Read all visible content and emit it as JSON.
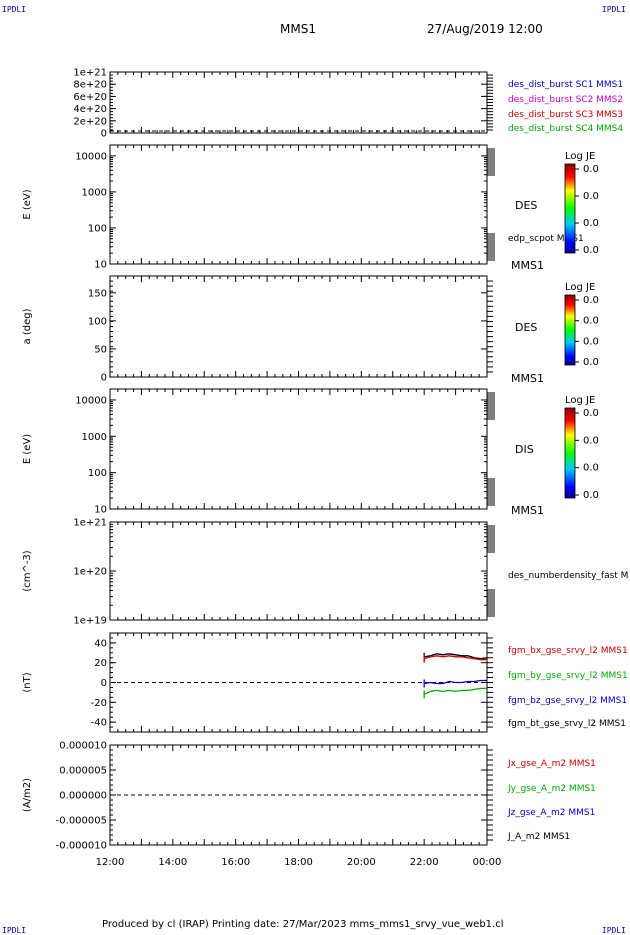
{
  "corner_labels": {
    "top_left": "IPDLI",
    "top_right": "IPDLI",
    "bottom_left": "IPDLI",
    "bottom_right": "IPDLI"
  },
  "header": {
    "title": "MMS1",
    "datetime": "27/Aug/2019 12:00"
  },
  "footer": {
    "text": "Produced by cl (IRAP)   Printing date: 27/Mar/2023   mms_mms1_srvy_vue_web1.cl"
  },
  "colors": {
    "black": "#000000",
    "blue": "#0000ff",
    "red": "#dd0000",
    "green": "#00cc00",
    "magenta": "#dd00dd"
  },
  "chart_data": [
    {
      "type": "line",
      "panel": "burst",
      "yticks": [
        "1e+21",
        "8e+20",
        "6e+20",
        "4e+20",
        "2e+20",
        "0"
      ],
      "ylim": [
        0,
        1e+21
      ],
      "legend": [
        {
          "name": "des_dist_burst SC1 MMS1",
          "color": "#0000cc"
        },
        {
          "name": "des_dist_burst SC2 MMS2",
          "color": "#cc00cc"
        },
        {
          "name": "des_dist_burst SC3 MMS3",
          "color": "#cc0000"
        },
        {
          "name": "des_dist_burst SC4 MMS4",
          "color": "#00aa00"
        }
      ],
      "series": []
    },
    {
      "type": "heatmap",
      "panel": "des_energy",
      "ylabel": "E (eV)",
      "scale": "log",
      "yticks": [
        "10000",
        "1000",
        "100",
        "10"
      ],
      "ylim": [
        10,
        20000
      ],
      "label": "DES",
      "bottom_label": "MMS1",
      "overlay_label": "edp_scpot MMS1",
      "colorbar": {
        "title": "Log JE",
        "ticks": [
          "0.0",
          "0.0",
          "0.0",
          "0.0"
        ]
      }
    },
    {
      "type": "heatmap",
      "panel": "des_pitch",
      "ylabel": "a (deg)",
      "yticks": [
        "150",
        "100",
        "50",
        "0"
      ],
      "ylim": [
        0,
        180
      ],
      "label": "DES",
      "bottom_label": "MMS1",
      "colorbar": {
        "title": "Log JE",
        "ticks": [
          "0.0",
          "0.0",
          "0.0",
          "0.0"
        ]
      }
    },
    {
      "type": "heatmap",
      "panel": "dis_energy",
      "ylabel": "E (eV)",
      "scale": "log",
      "yticks": [
        "10000",
        "1000",
        "100",
        "10"
      ],
      "ylim": [
        10,
        20000
      ],
      "label": "DIS",
      "bottom_label": "MMS1",
      "colorbar": {
        "title": "Log JE",
        "ticks": [
          "0.0",
          "0.0",
          "0.0",
          "0.0"
        ]
      }
    },
    {
      "type": "line",
      "panel": "density",
      "ylabel": "(cm^-3)",
      "scale": "log",
      "yticks": [
        "1e+21",
        "1e+20",
        "1e+19"
      ],
      "ylim": [
        1e+19,
        1e+21
      ],
      "legend": [
        {
          "name": "des_numberdensity_fast M",
          "color": "#000000"
        }
      ],
      "series": []
    },
    {
      "type": "line",
      "panel": "fgm",
      "ylabel": "(nT)",
      "yticks": [
        "40",
        "20",
        "0",
        "-20",
        "-40"
      ],
      "ylim": [
        -50,
        50
      ],
      "xlim_hours": [
        12,
        24
      ],
      "legend": [
        {
          "name": "fgm_bx_gse_srvy_l2 MMS1",
          "color": "#cc0000"
        },
        {
          "name": "fgm_by_gse_srvy_l2 MMS1",
          "color": "#00aa00"
        },
        {
          "name": "fgm_bz_gse_srvy_l2 MMS1",
          "color": "#0000cc"
        },
        {
          "name": "fgm_bt_gse_srvy_l2 MMS1",
          "color": "#000000"
        }
      ],
      "series": [
        {
          "name": "fgm_bt_gse_srvy_l2 MMS1",
          "color": "#000000",
          "x": [
            22.0,
            22.2,
            22.4,
            22.6,
            22.8,
            23.0,
            23.2,
            23.4,
            23.6,
            23.8,
            24.0
          ],
          "y": [
            26,
            27,
            29,
            28,
            29,
            28,
            27,
            27,
            25,
            24,
            25
          ]
        },
        {
          "name": "fgm_bx_gse_srvy_l2 MMS1",
          "color": "#cc0000",
          "x": [
            22.0,
            22.2,
            22.4,
            22.6,
            22.8,
            23.0,
            23.2,
            23.4,
            23.6,
            23.8,
            24.0
          ],
          "y": [
            24,
            26,
            27,
            26,
            27,
            26,
            26,
            25,
            24,
            23,
            23
          ]
        },
        {
          "name": "fgm_bz_gse_srvy_l2 MMS1",
          "color": "#0000cc",
          "x": [
            22.0,
            22.2,
            22.4,
            22.6,
            22.8,
            23.0,
            23.2,
            23.4,
            23.6,
            23.8,
            24.0
          ],
          "y": [
            -1,
            0,
            -1,
            -1,
            1,
            0,
            0,
            1,
            1,
            2,
            2
          ]
        },
        {
          "name": "fgm_by_gse_srvy_l2 MMS1",
          "color": "#00aa00",
          "x": [
            22.0,
            22.2,
            22.4,
            22.6,
            22.8,
            23.0,
            23.2,
            23.4,
            23.6,
            23.8,
            24.0
          ],
          "y": [
            -12,
            -9,
            -8,
            -9,
            -8,
            -9,
            -8,
            -8,
            -7,
            -6,
            -6
          ]
        }
      ]
    },
    {
      "type": "line",
      "panel": "current",
      "ylabel": "(A/m2)",
      "yticks": [
        "0.000010",
        "0.000005",
        "0.000000",
        "-0.000005",
        "-0.000010"
      ],
      "ylim": [
        -1e-05,
        1e-05
      ],
      "legend": [
        {
          "name": "Jx_gse_A_m2 MMS1",
          "color": "#cc0000"
        },
        {
          "name": "Jy_gse_A_m2 MMS1",
          "color": "#00aa00"
        },
        {
          "name": "Jz_gse_A_m2 MMS1",
          "color": "#0000cc"
        },
        {
          "name": "J_A_m2 MMS1",
          "color": "#000000"
        }
      ],
      "series": []
    }
  ],
  "xaxis": {
    "ticks": [
      "12:00",
      "14:00",
      "16:00",
      "18:00",
      "20:00",
      "22:00",
      "00:00"
    ],
    "start_hour": 12,
    "end_hour": 24
  }
}
